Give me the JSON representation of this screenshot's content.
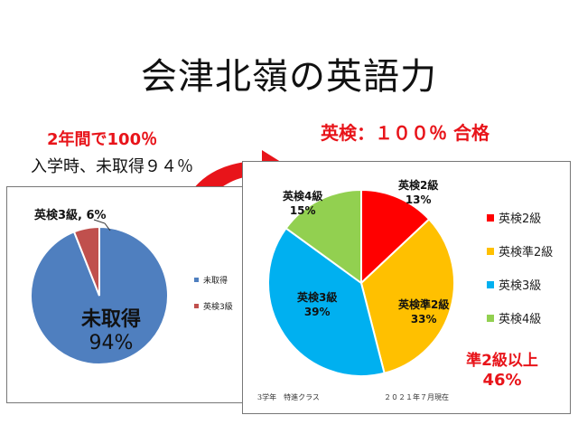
{
  "title": "会津北嶺の英語力",
  "left_caption": "2年間で100％",
  "left_subcaption": "入学時、未取得９４％",
  "right_caption": "英検：１００％ 合格",
  "colors": {
    "red_text": "#e8141a",
    "blue": "#4f7fbf",
    "dark_red": "#c0504d",
    "red": "#ff0000",
    "orange": "#ffc000",
    "sky": "#00b0f0",
    "green": "#92d050"
  },
  "chart_data": [
    {
      "type": "pie",
      "title": "",
      "slices": [
        {
          "label": "未取得",
          "value": 94,
          "color": "#4f7fbf"
        },
        {
          "label": "英検3級",
          "value": 6,
          "color": "#c0504d"
        }
      ],
      "legend": [
        "未取得",
        "英検3級"
      ],
      "legend_position": "right",
      "callout_label": "英検3級, 6%",
      "big_label": "未取得",
      "big_value": "94%"
    },
    {
      "type": "pie",
      "title": "",
      "slices": [
        {
          "label": "英検2級",
          "value": 13,
          "pct": "13%",
          "color": "#ff0000"
        },
        {
          "label": "英検準2級",
          "value": 33,
          "pct": "33%",
          "color": "#ffc000"
        },
        {
          "label": "英検3級",
          "value": 39,
          "pct": "39%",
          "color": "#00b0f0"
        },
        {
          "label": "英検4級",
          "value": 15,
          "pct": "15%",
          "color": "#92d050"
        }
      ],
      "legend": [
        "英検2級",
        "英検準2級",
        "英検3級",
        "英検4級"
      ],
      "legend_position": "right",
      "note_left": "3学年　特進クラス",
      "note_right": "２０２１年７月現在",
      "summary_label": "準2級以上",
      "summary_value": "46%"
    }
  ]
}
